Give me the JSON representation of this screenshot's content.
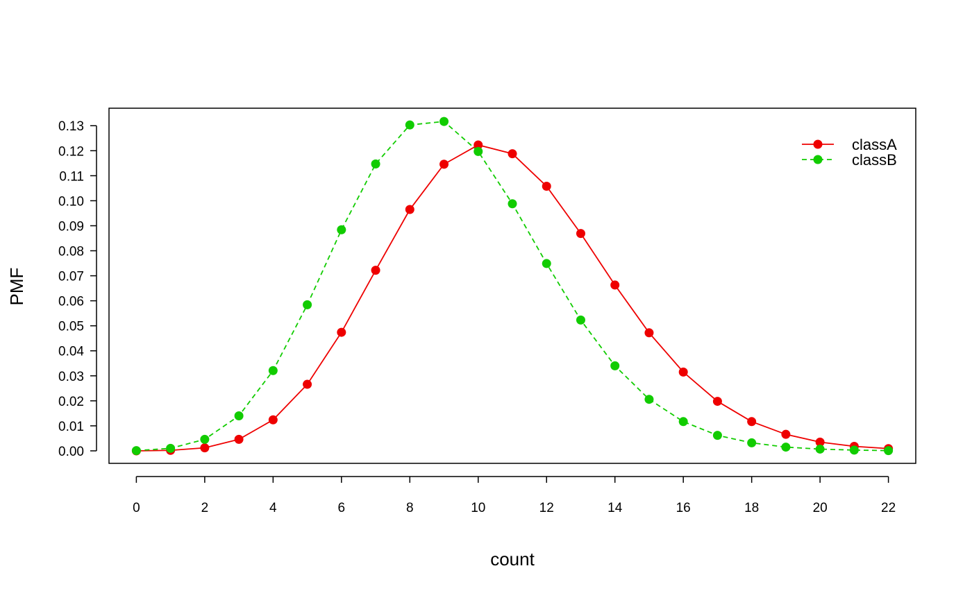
{
  "chart_data": {
    "type": "line",
    "title": "",
    "xlabel": "count",
    "ylabel": "PMF",
    "xlim": [
      -0.8,
      22.8
    ],
    "ylim": [
      -0.005,
      0.137
    ],
    "xticks": [
      "0",
      "2",
      "4",
      "6",
      "8",
      "10",
      "12",
      "14",
      "16",
      "18",
      "20",
      "22"
    ],
    "yticks": [
      "0.00",
      "0.01",
      "0.02",
      "0.03",
      "0.04",
      "0.05",
      "0.06",
      "0.07",
      "0.08",
      "0.09",
      "0.10",
      "0.11",
      "0.12",
      "0.13"
    ],
    "grid": false,
    "legend_position": "top-right",
    "x": [
      0,
      1,
      2,
      3,
      4,
      5,
      6,
      7,
      8,
      9,
      10,
      11,
      12,
      13,
      14,
      15,
      16,
      17,
      18,
      19,
      20,
      21,
      22
    ],
    "series": [
      {
        "name": "classA",
        "color": "#ee0000",
        "line_style": "solid",
        "marker": "circle",
        "values": [
          0.0,
          0.0002,
          0.0012,
          0.0046,
          0.0124,
          0.0266,
          0.0474,
          0.0722,
          0.0965,
          0.1146,
          0.1223,
          0.1188,
          0.1058,
          0.0869,
          0.0663,
          0.0472,
          0.0315,
          0.0198,
          0.0117,
          0.0066,
          0.0035,
          0.0018,
          0.0009
        ]
      },
      {
        "name": "classB",
        "color": "#11cc00",
        "line_style": "dashed",
        "marker": "circle",
        "values": [
          0.0001,
          0.001,
          0.0046,
          0.014,
          0.0321,
          0.0584,
          0.0884,
          0.1147,
          0.1303,
          0.1317,
          0.1197,
          0.0988,
          0.0749,
          0.0523,
          0.034,
          0.0206,
          0.0117,
          0.0062,
          0.0032,
          0.0015,
          0.0007,
          0.0003,
          0.0001
        ]
      }
    ]
  }
}
